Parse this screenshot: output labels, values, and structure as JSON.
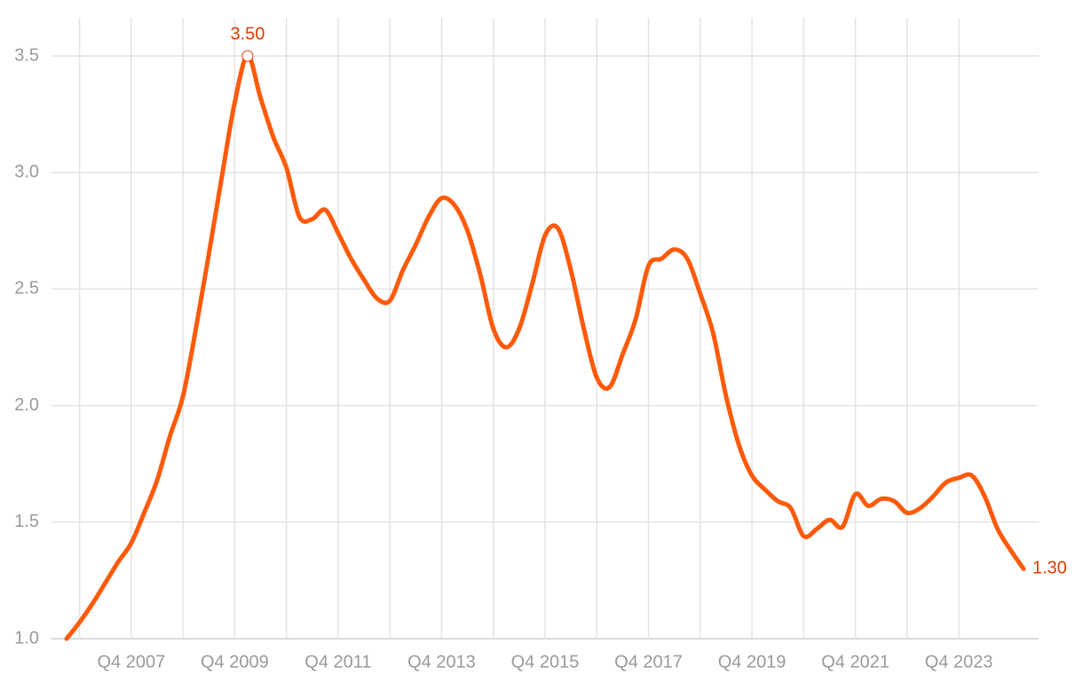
{
  "chart_data": {
    "type": "line",
    "categories": [
      null,
      null,
      null,
      null,
      null,
      "Q4 2007",
      null,
      null,
      null,
      null,
      null,
      null,
      null,
      "Q4 2009",
      null,
      null,
      null,
      null,
      null,
      null,
      null,
      "Q4 2011",
      null,
      null,
      null,
      null,
      null,
      null,
      null,
      "Q4 2013",
      null,
      null,
      null,
      null,
      null,
      null,
      null,
      "Q4 2015",
      null,
      null,
      null,
      null,
      null,
      null,
      null,
      "Q4 2017",
      null,
      null,
      null,
      null,
      null,
      null,
      null,
      "Q4 2019",
      null,
      null,
      null,
      null,
      null,
      null,
      null,
      "Q4 2021",
      null,
      null,
      null,
      null,
      null,
      null,
      null,
      "Q4 2023",
      null,
      null,
      null,
      null,
      null
    ],
    "values": [
      1.0,
      1.07,
      1.15,
      1.24,
      1.33,
      1.41,
      1.54,
      1.68,
      1.87,
      2.04,
      2.33,
      2.65,
      2.98,
      3.3,
      3.5,
      3.32,
      3.15,
      3.02,
      2.81,
      2.8,
      2.84,
      2.74,
      2.63,
      2.54,
      2.46,
      2.45,
      2.58,
      2.69,
      2.81,
      2.89,
      2.86,
      2.75,
      2.56,
      2.33,
      2.25,
      2.33,
      2.52,
      2.73,
      2.76,
      2.58,
      2.33,
      2.12,
      2.08,
      2.22,
      2.37,
      2.6,
      2.63,
      2.67,
      2.63,
      2.48,
      2.31,
      2.04,
      1.83,
      1.7,
      1.64,
      1.59,
      1.56,
      1.44,
      1.47,
      1.51,
      1.48,
      1.62,
      1.57,
      1.6,
      1.59,
      1.54,
      1.56,
      1.61,
      1.67,
      1.69,
      1.7,
      1.61,
      1.47,
      1.38,
      1.3
    ],
    "value_labels": [
      null,
      null,
      null,
      null,
      null,
      null,
      null,
      null,
      null,
      null,
      null,
      null,
      null,
      null,
      "3.50",
      null,
      null,
      null,
      null,
      null,
      null,
      null,
      null,
      null,
      null,
      null,
      null,
      null,
      null,
      null,
      null,
      null,
      null,
      null,
      null,
      null,
      null,
      null,
      null,
      null,
      null,
      null,
      null,
      null,
      null,
      null,
      null,
      null,
      null,
      null,
      null,
      null,
      null,
      null,
      null,
      null,
      null,
      null,
      null,
      null,
      null,
      null,
      null,
      null,
      null,
      null,
      null,
      null,
      null,
      null,
      null,
      null,
      null,
      null,
      "1.30"
    ],
    "color": "#ff5a0a",
    "ylim": [
      1.0,
      3.5
    ],
    "yticks": [
      {
        "value": 1.0,
        "label": "1.0"
      },
      1.5,
      {
        "value": 2.0,
        "label": "2.0"
      },
      2.5,
      {
        "value": 3.0,
        "label": "3.0"
      },
      3.5
    ],
    "grid": true
  }
}
